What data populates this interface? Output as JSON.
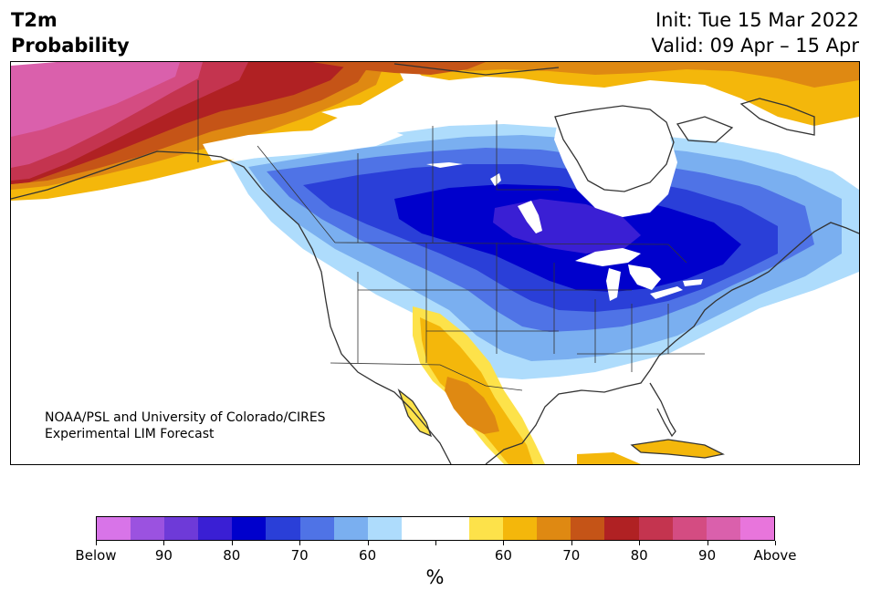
{
  "title": {
    "left_line1": "T2m",
    "left_line2": "Probability",
    "right_line1": "Init: Tue 15 Mar 2022",
    "right_line2": "Valid: 09 Apr – 15 Apr"
  },
  "credit": {
    "line1": "NOAA/PSL and University of Colorado/CIRES",
    "line2": "Experimental LIM Forecast"
  },
  "colorbar": {
    "unit": "%",
    "colors": [
      "#d874e8",
      "#9b52e0",
      "#6e3ad8",
      "#3a1fd4",
      "#0000cc",
      "#2a3fd8",
      "#4f73e6",
      "#7aaff0",
      "#aedcfc",
      "#ffffff",
      "#ffffff",
      "#fde24a",
      "#f4b70b",
      "#df8912",
      "#c55417",
      "#b02123",
      "#c4344f",
      "#d44c82",
      "#da60ac",
      "#e875dc"
    ],
    "labels": [
      "Below",
      "90",
      "80",
      "70",
      "60",
      "",
      "60",
      "70",
      "80",
      "90",
      "Above"
    ]
  },
  "map": {
    "region": "North America",
    "colors": {
      "below_90": "#3a1fd4",
      "below_80": "#0000cc",
      "below_70": "#2a3fd8",
      "below_60": "#4f73e6",
      "below_50": "#7aaff0",
      "below_40": "#aedcfc",
      "above_40": "#fde24a",
      "above_50": "#f4b70b",
      "above_60": "#df8912",
      "above_70": "#c55417",
      "above_80": "#b02123",
      "above_85": "#c4344f",
      "above_90": "#d44c82",
      "above_95": "#da60ac"
    }
  }
}
